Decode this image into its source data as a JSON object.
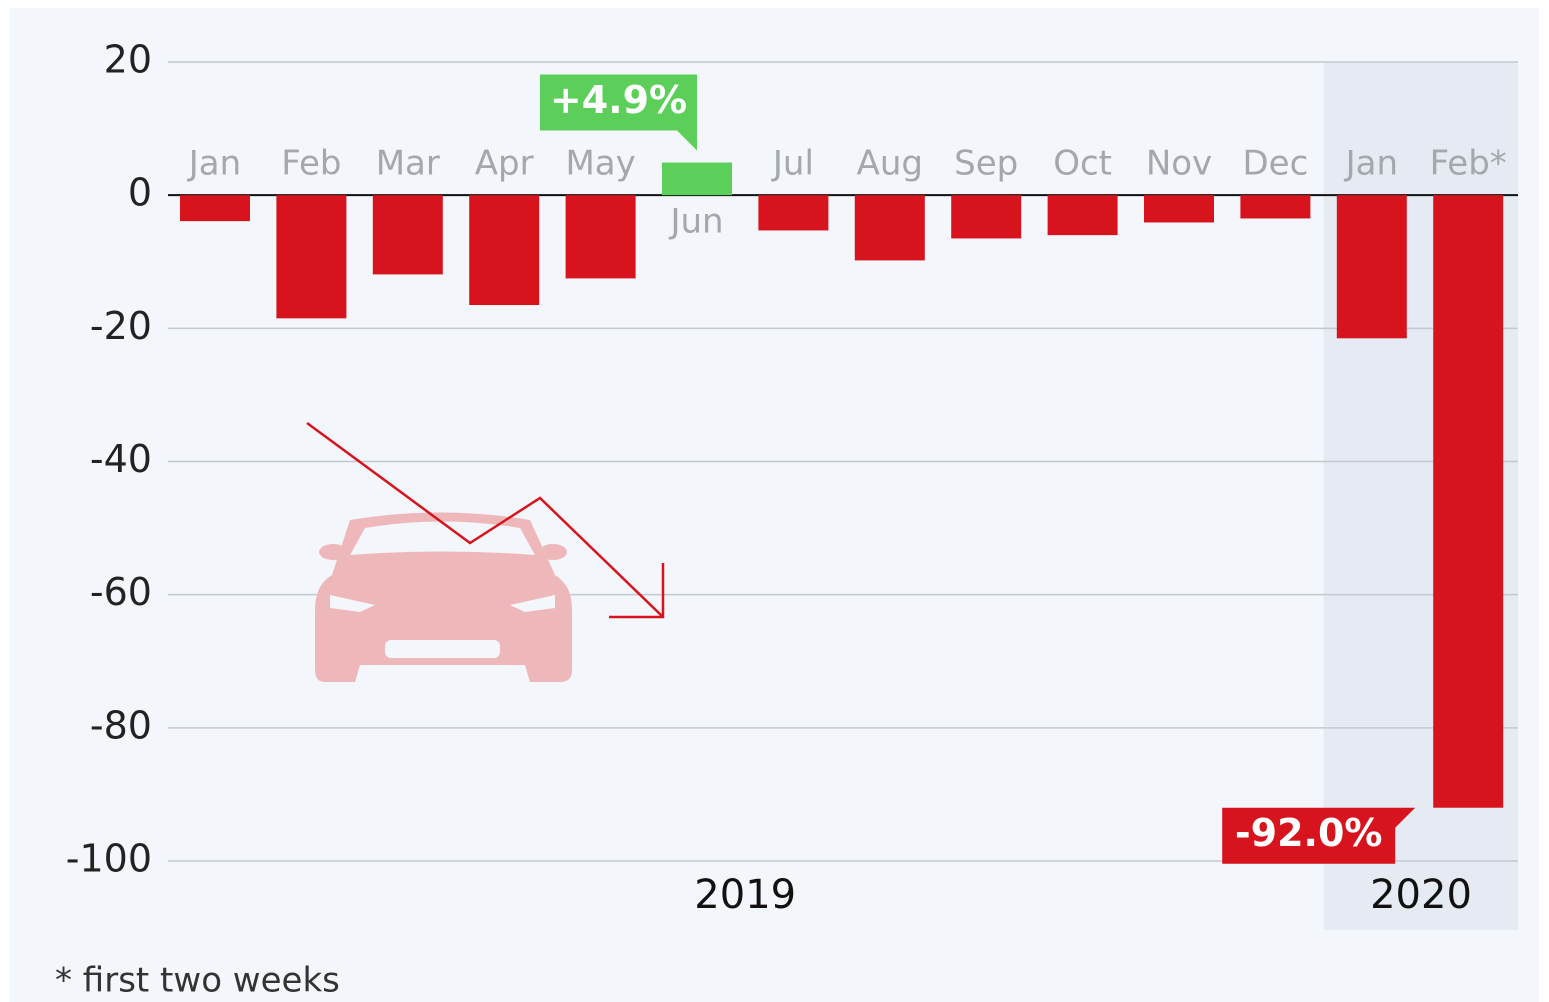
{
  "chart_data": {
    "type": "bar",
    "categories": [
      "Jan",
      "Feb",
      "Mar",
      "Apr",
      "May",
      "Jun",
      "Jul",
      "Aug",
      "Sep",
      "Oct",
      "Nov",
      "Dec",
      "Jan",
      "Feb*"
    ],
    "values": [
      -3.9,
      -18.5,
      -11.9,
      -16.5,
      -12.5,
      4.9,
      -5.3,
      -9.8,
      -6.5,
      -6.0,
      -4.1,
      -3.5,
      -21.5,
      -92.0
    ],
    "value_labels": [
      null,
      null,
      null,
      null,
      null,
      "+4.9%",
      null,
      null,
      null,
      null,
      null,
      null,
      null,
      "-92.0%"
    ],
    "color": "#d7141e",
    "positive_color": "#5ccf5a",
    "groups": [
      {
        "label": "2019",
        "count": 12
      },
      {
        "label": "2020",
        "count": 2
      }
    ],
    "ylim": [
      -100,
      20
    ],
    "yticks": [
      20,
      0,
      -20,
      -40,
      -60,
      -80,
      -100
    ],
    "grid": true,
    "footnote": "* first two weeks"
  }
}
